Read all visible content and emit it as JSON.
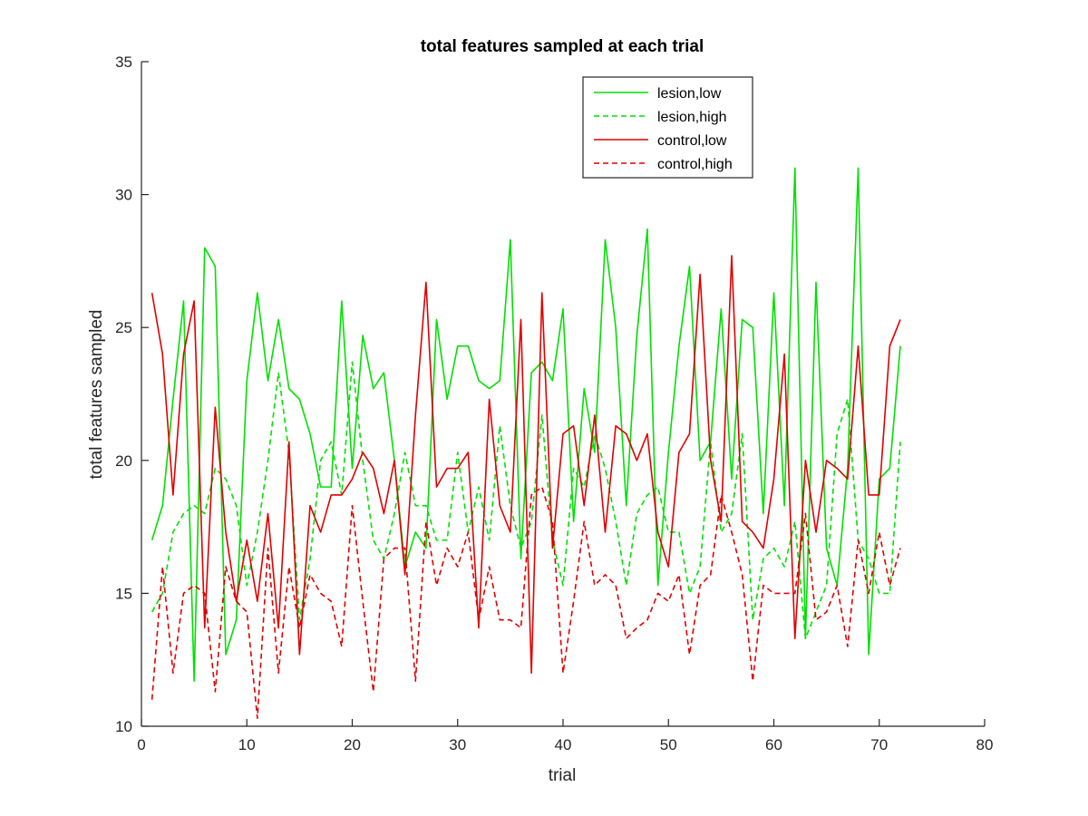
{
  "chart_data": {
    "type": "line",
    "title": "total features sampled at each trial",
    "xlabel": "trial",
    "ylabel": "total features sampled",
    "xlim": [
      0,
      80
    ],
    "ylim": [
      10,
      35
    ],
    "xticks": [
      0,
      10,
      20,
      30,
      40,
      50,
      60,
      70,
      80
    ],
    "yticks": [
      10,
      15,
      20,
      25,
      30,
      35
    ],
    "grid": false,
    "legend_position": "top-right",
    "x": [
      1,
      2,
      3,
      4,
      5,
      6,
      7,
      8,
      9,
      10,
      11,
      12,
      13,
      14,
      15,
      16,
      17,
      18,
      19,
      20,
      21,
      22,
      23,
      24,
      25,
      26,
      27,
      28,
      29,
      30,
      31,
      32,
      33,
      34,
      35,
      36,
      37,
      38,
      39,
      40,
      41,
      42,
      43,
      44,
      45,
      46,
      47,
      48,
      49,
      50,
      51,
      52,
      53,
      54,
      55,
      56,
      57,
      58,
      59,
      60,
      61,
      62,
      63,
      64,
      65,
      66,
      67,
      68,
      69,
      70,
      71,
      72
    ],
    "series": [
      {
        "name": "lesion,low",
        "color": "#00e000",
        "dash": "solid",
        "values": [
          17,
          18.3,
          22.3,
          26,
          11.7,
          28,
          27.3,
          12.7,
          14,
          23,
          26.3,
          23,
          25.3,
          22.7,
          22.3,
          21,
          19,
          19,
          26,
          19.7,
          24.7,
          22.7,
          23.3,
          20,
          16,
          17.3,
          16.7,
          25.3,
          22.3,
          24.3,
          24.3,
          23,
          22.7,
          23,
          28.3,
          16.3,
          23.3,
          23.7,
          23,
          25.7,
          17.7,
          22.7,
          20.3,
          28.3,
          25,
          18.3,
          24.7,
          28.7,
          15.3,
          20.3,
          24.3,
          27.3,
          20,
          20.7,
          25.7,
          19.3,
          25.3,
          25,
          18,
          26.3,
          18.3,
          31,
          13.3,
          26.7,
          16.7,
          15.3,
          19.7,
          31,
          12.7,
          19.3,
          19.7,
          24.3
        ]
      },
      {
        "name": "lesion,high",
        "color": "#00e000",
        "dash": "dashed",
        "values": [
          14.3,
          15,
          17.3,
          18,
          18.3,
          18,
          19.7,
          19.3,
          18.3,
          15.3,
          17.3,
          20,
          23.3,
          20.3,
          14,
          16.3,
          20,
          20.7,
          18.7,
          23.7,
          20,
          17,
          16.3,
          18,
          20.3,
          18.3,
          18.3,
          17,
          17,
          20.3,
          17.3,
          19,
          17,
          21.3,
          18.3,
          16.7,
          17.7,
          21.7,
          17,
          15.3,
          19.7,
          19,
          21,
          19.7,
          17.7,
          15.3,
          18,
          18.7,
          19,
          17.3,
          17.3,
          15,
          16,
          20.7,
          17.3,
          18,
          21,
          14,
          16.3,
          16.7,
          16,
          17.7,
          13.3,
          14.3,
          15.3,
          21,
          22.3,
          17,
          16.3,
          15,
          15,
          20.7
        ]
      },
      {
        "name": "control,low",
        "color": "#e00000",
        "dash": "solid",
        "values": [
          26.3,
          24,
          18.7,
          24,
          26,
          13.7,
          22,
          17.3,
          14.7,
          17,
          14.7,
          18,
          13.7,
          20.7,
          12.7,
          18.3,
          17.3,
          18.7,
          18.7,
          19.3,
          20.3,
          19.7,
          18,
          20,
          15.7,
          21.7,
          26.7,
          19,
          19.7,
          19.7,
          20.3,
          13.7,
          22.3,
          18.3,
          17.3,
          25.3,
          12,
          26.3,
          16.7,
          21,
          21.3,
          18.3,
          21.7,
          17.3,
          21.3,
          21,
          20,
          21,
          17.3,
          16,
          20.3,
          21,
          27,
          20,
          17.7,
          27.7,
          17.7,
          17.3,
          16.7,
          19.3,
          24,
          13.3,
          20,
          17.3,
          20,
          19.7,
          19.3,
          24.3,
          18.7,
          18.7,
          24.3,
          25.3
        ]
      },
      {
        "name": "control,high",
        "color": "#e00000",
        "dash": "dashed",
        "values": [
          11,
          16,
          12,
          15,
          15.3,
          15,
          11.3,
          16,
          14.7,
          14.3,
          10.3,
          16.7,
          12,
          16,
          13.7,
          15.7,
          15,
          14.7,
          13,
          18.3,
          14.7,
          11.3,
          16.3,
          16.7,
          16.7,
          11.7,
          17.7,
          15.3,
          16.7,
          16,
          17.3,
          14,
          16,
          14,
          14,
          13.7,
          18.7,
          19,
          17.7,
          12,
          14.7,
          17.7,
          15.3,
          15.7,
          15.3,
          13.3,
          13.7,
          14,
          15,
          14.7,
          15.7,
          12.7,
          15.3,
          15.7,
          18.7,
          17.3,
          15.7,
          11.7,
          15.3,
          15,
          15,
          15,
          18,
          14,
          14.3,
          15.3,
          13,
          17,
          15,
          17.3,
          15.3,
          16.7
        ]
      }
    ]
  }
}
